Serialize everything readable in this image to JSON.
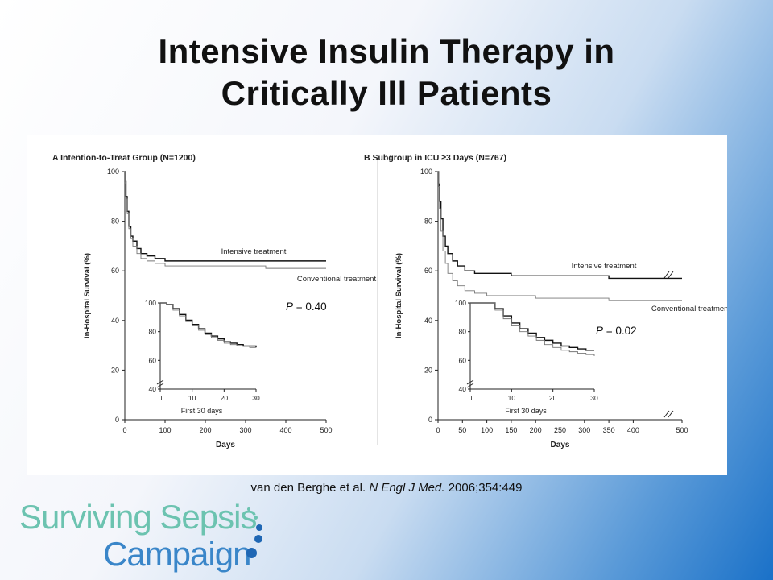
{
  "slide": {
    "title_line1": "Intensive Insulin Therapy in",
    "title_line2": "Critically Ill Patients",
    "citation_pre": "van den Berghe et al. ",
    "citation_journal": "N Engl J Med.",
    "citation_post": " 2006;354:449",
    "logo_line1": "Surviving Sepsis",
    "logo_line2": "Campaign",
    "logo_colors": {
      "teal": "#6cc3b0",
      "blue": "#1f67b4"
    }
  },
  "chart_data": [
    {
      "type": "line",
      "title": "A   Intention-to-Treat Group (N=1200)",
      "xlabel": "Days",
      "ylabel": "In-Hospital Survival (%)",
      "xlim": [
        0,
        500
      ],
      "ylim": [
        0,
        100
      ],
      "xticks": [
        0,
        100,
        200,
        300,
        400,
        500
      ],
      "yticks": [
        0,
        20,
        40,
        60,
        80,
        100
      ],
      "pvalue_label": "P",
      "pvalue_text": " = 0.40",
      "series": [
        {
          "name": "Intensive treatment",
          "color": "#111111",
          "x": [
            0,
            1,
            3,
            6,
            10,
            15,
            20,
            30,
            40,
            55,
            75,
            100,
            150,
            200,
            250,
            300,
            350,
            400,
            430,
            500
          ],
          "y": [
            100,
            96,
            90,
            84,
            78,
            74,
            72,
            69,
            67,
            66,
            65,
            64,
            64,
            64,
            64,
            64,
            64,
            64,
            64,
            64
          ]
        },
        {
          "name": "Conventional treatment",
          "color": "#777777",
          "x": [
            0,
            1,
            3,
            6,
            10,
            15,
            20,
            30,
            40,
            55,
            75,
            100,
            150,
            200,
            250,
            300,
            350,
            400,
            430,
            500
          ],
          "y": [
            100,
            95,
            89,
            83,
            77,
            73,
            70,
            67,
            65,
            64,
            63,
            62,
            62,
            62,
            62,
            62,
            61,
            61,
            61,
            61
          ]
        }
      ],
      "inset": {
        "xlabel": "First 30 days",
        "xlim": [
          0,
          30
        ],
        "ylim": [
          40,
          100
        ],
        "xticks": [
          0,
          10,
          20,
          30
        ],
        "yticks": [
          40,
          60,
          80,
          100
        ],
        "series": [
          {
            "name": "Intensive treatment",
            "x": [
              0,
              2,
              4,
              6,
              8,
              10,
              12,
              14,
              16,
              18,
              20,
              22,
              24,
              26,
              28,
              30
            ],
            "y": [
              100,
              99,
              96,
              92,
              88,
              85,
              82,
              79,
              77,
              75,
              73,
              72,
              71,
              70,
              70,
              69
            ]
          },
          {
            "name": "Conventional treatment",
            "x": [
              0,
              2,
              4,
              6,
              8,
              10,
              12,
              14,
              16,
              18,
              20,
              22,
              24,
              26,
              28,
              30
            ],
            "y": [
              100,
              99,
              95,
              91,
              87,
              84,
              81,
              78,
              76,
              74,
              72,
              71,
              70,
              70,
              69,
              69
            ]
          }
        ]
      }
    },
    {
      "type": "line",
      "title": "B   Subgroup in ICU ≥3 Days (N=767)",
      "xlabel": "Days",
      "ylabel": "In-Hospital Survival (%)",
      "xlim": [
        0,
        500
      ],
      "ylim": [
        0,
        100
      ],
      "xticks": [
        0,
        50,
        100,
        150,
        200,
        250,
        300,
        350,
        400,
        500
      ],
      "yticks": [
        0,
        20,
        40,
        60,
        80,
        100
      ],
      "pvalue_label": "P",
      "pvalue_text": " = 0.02",
      "series": [
        {
          "name": "Intensive treatment",
          "color": "#111111",
          "x": [
            0,
            1,
            3,
            6,
            10,
            15,
            20,
            30,
            40,
            55,
            75,
            100,
            150,
            200,
            250,
            300,
            350,
            400,
            450,
            500
          ],
          "y": [
            100,
            95,
            88,
            81,
            74,
            70,
            67,
            64,
            62,
            60,
            59,
            59,
            58,
            58,
            58,
            58,
            57,
            57,
            57,
            57
          ]
        },
        {
          "name": "Conventional treatment",
          "color": "#777777",
          "x": [
            0,
            1,
            3,
            6,
            10,
            15,
            20,
            30,
            40,
            55,
            75,
            100,
            150,
            200,
            250,
            300,
            350,
            400,
            450,
            500
          ],
          "y": [
            100,
            94,
            85,
            76,
            68,
            63,
            59,
            56,
            54,
            52,
            51,
            50,
            50,
            49,
            49,
            49,
            48,
            48,
            48,
            48
          ]
        }
      ],
      "inset": {
        "xlabel": "First 30 days",
        "xlim": [
          0,
          30
        ],
        "ylim": [
          40,
          100
        ],
        "xticks": [
          0,
          10,
          20,
          30
        ],
        "yticks": [
          40,
          60,
          80,
          100
        ],
        "series": [
          {
            "name": "Intensive treatment",
            "x": [
              0,
              2,
              4,
              6,
              8,
              10,
              12,
              14,
              16,
              18,
              20,
              22,
              24,
              26,
              28,
              30
            ],
            "y": [
              100,
              100,
              100,
              96,
              91,
              86,
              82,
              79,
              76,
              74,
              72,
              70,
              69,
              68,
              67,
              67
            ]
          },
          {
            "name": "Conventional treatment",
            "x": [
              0,
              2,
              4,
              6,
              8,
              10,
              12,
              14,
              16,
              18,
              20,
              22,
              24,
              26,
              28,
              30
            ],
            "y": [
              100,
              100,
              100,
              95,
              89,
              84,
              80,
              77,
              74,
              71,
              69,
              67,
              66,
              65,
              64,
              63
            ]
          }
        ]
      }
    }
  ]
}
